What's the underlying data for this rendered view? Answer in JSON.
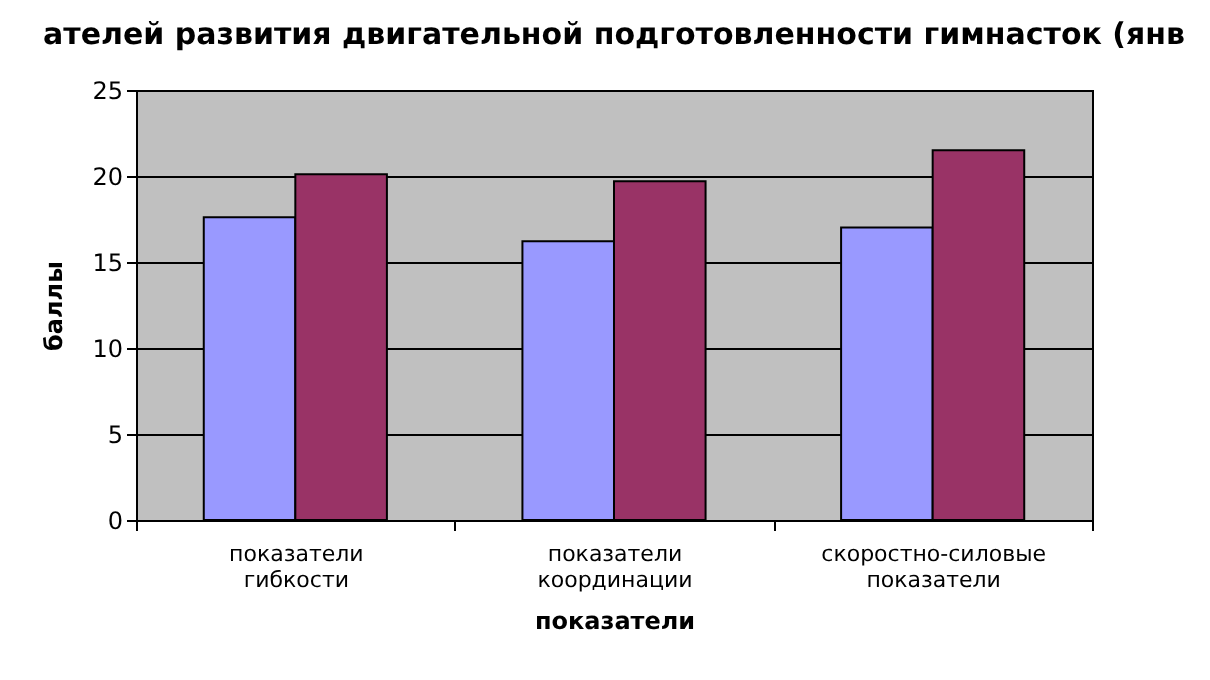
{
  "chart_data": {
    "type": "bar",
    "title": "ателей развития двигательной подготовленности гимнасток (янв",
    "xlabel": "показатели",
    "ylabel": "баллы",
    "categories": [
      "показатели гибкости",
      "показатели координации",
      "скоростно-силовые показатели"
    ],
    "series": [
      {
        "color": "#9999ff",
        "values": [
          17.6,
          16.2,
          17.0
        ]
      },
      {
        "color": "#993366",
        "values": [
          20.1,
          19.7,
          21.5
        ]
      }
    ],
    "ylim": [
      0,
      25
    ],
    "yticks": [
      0,
      5,
      10,
      15,
      20,
      25
    ],
    "grid": "y"
  }
}
